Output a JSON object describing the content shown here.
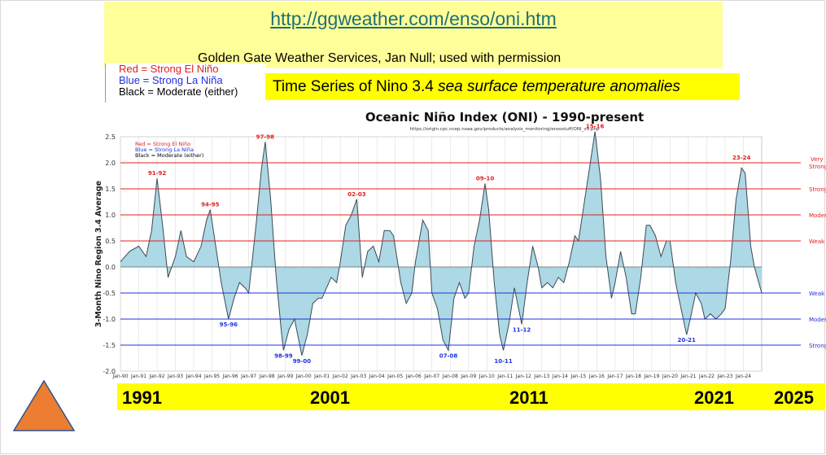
{
  "header": {
    "url_text": "http://ggweather.com/enso/oni.htm",
    "credit": "Golden Gate Weather Services, Jan Null; used with permission",
    "subtitle_plain": "Time Series of Nino 3.4 ",
    "subtitle_italic": "sea surface temperature anomalies"
  },
  "legend": {
    "red": "Red = Strong El Niño",
    "blue": "Blue = Strong La Niña",
    "black": "Black = Moderate (either)"
  },
  "year_labels": [
    "1991",
    "2001",
    "2011",
    "2021",
    "2025"
  ],
  "colors": {
    "banner": "#ffff99",
    "highlight": "#ffff00",
    "fill": "#add8e6",
    "el_nino": "#e02020",
    "la_nina": "#2030e0",
    "triangle": "#ed7d31"
  },
  "chart_data": {
    "type": "area",
    "title": "Oceanic Niño Index (ONI) - 1990-present",
    "source": "https://origin.cpc.ncep.noaa.gov/products/analysis_monitoring/ensostuff/ONI_v5.php",
    "ylabel": "3-Month Nino Region 3.4 Average",
    "xlabel": "",
    "ylim": [
      -2.0,
      2.5
    ],
    "xlim": [
      1990.0,
      2025.0
    ],
    "yticks": [
      "2.5",
      "2.0",
      "1.5",
      "1.0",
      "0.5",
      "0.0",
      "-0.5",
      "-1.0",
      "-1.5",
      "-2.0"
    ],
    "xticks": [
      "Jan-90",
      "Jan-91",
      "Jan-92",
      "Jan-93",
      "Jan-94",
      "Jan-95",
      "Jan-96",
      "Jan-97",
      "Jan-98",
      "Jan-99",
      "Jan-00",
      "Jan-01",
      "Jan-02",
      "Jan-03",
      "Jan-04",
      "Jan-05",
      "Jan-06",
      "Jan-07",
      "Jan-08",
      "Jan-09",
      "Jan-10",
      "Jan-11",
      "Jan-12",
      "Jan-13",
      "Jan-14",
      "Jan-15",
      "Jan-16",
      "Jan-17",
      "Jan-18",
      "Jan-19",
      "Jan-20",
      "Jan-21",
      "Jan-22",
      "Jan-23",
      "Jan-24"
    ],
    "chart_legend": {
      "red": "Red = Strong  El Niño",
      "blue": "Blue = Strong  La Niña",
      "black": "Black = Moderate  (either)"
    },
    "thresholds": [
      {
        "value": 2.0,
        "label": "Very Strong",
        "color": "red"
      },
      {
        "value": 1.5,
        "label": "Strong",
        "color": "red"
      },
      {
        "value": 1.0,
        "label": "Moderate",
        "color": "red"
      },
      {
        "value": 0.5,
        "label": "Weak",
        "color": "red"
      },
      {
        "value": -0.5,
        "label": "Weak",
        "color": "blue"
      },
      {
        "value": -1.0,
        "label": "Moderate",
        "color": "blue"
      },
      {
        "value": -1.5,
        "label": "Strong",
        "color": "blue"
      }
    ],
    "annotations": [
      {
        "text": "91-92",
        "x": 1992.0,
        "y": 1.7,
        "color": "red"
      },
      {
        "text": "94-95",
        "x": 1994.9,
        "y": 1.1,
        "color": "red"
      },
      {
        "text": "97-98",
        "x": 1997.9,
        "y": 2.4,
        "color": "red"
      },
      {
        "text": "02-03",
        "x": 2002.9,
        "y": 1.3,
        "color": "red"
      },
      {
        "text": "09-10",
        "x": 2009.9,
        "y": 1.6,
        "color": "red"
      },
      {
        "text": "15-16",
        "x": 2015.9,
        "y": 2.6,
        "color": "red"
      },
      {
        "text": "23-24",
        "x": 2023.9,
        "y": 2.0,
        "color": "red"
      },
      {
        "text": "95-96",
        "x": 1995.9,
        "y": -1.0,
        "color": "blue"
      },
      {
        "text": "98-99",
        "x": 1998.9,
        "y": -1.6,
        "color": "blue"
      },
      {
        "text": "99-00",
        "x": 1999.9,
        "y": -1.7,
        "color": "blue"
      },
      {
        "text": "07-08",
        "x": 2007.9,
        "y": -1.6,
        "color": "blue"
      },
      {
        "text": "10-11",
        "x": 2010.9,
        "y": -1.7,
        "color": "blue"
      },
      {
        "text": "11-12",
        "x": 2011.9,
        "y": -1.1,
        "color": "blue"
      },
      {
        "text": "20-21",
        "x": 2020.9,
        "y": -1.3,
        "color": "blue"
      }
    ],
    "x": [
      1990.0,
      1990.5,
      1991.0,
      1991.4,
      1991.7,
      1992.0,
      1992.3,
      1992.6,
      1993.0,
      1993.3,
      1993.6,
      1994.0,
      1994.4,
      1994.7,
      1994.9,
      1995.2,
      1995.5,
      1995.9,
      1996.2,
      1996.5,
      1996.8,
      1997.0,
      1997.4,
      1997.7,
      1997.9,
      1998.2,
      1998.5,
      1998.8,
      1998.9,
      1999.2,
      1999.5,
      1999.9,
      2000.2,
      2000.5,
      2000.8,
      2001.0,
      2001.5,
      2001.8,
      2002.0,
      2002.3,
      2002.6,
      2002.9,
      2003.2,
      2003.5,
      2003.8,
      2004.1,
      2004.4,
      2004.7,
      2004.9,
      2005.3,
      2005.6,
      2005.9,
      2006.1,
      2006.5,
      2006.8,
      2007.0,
      2007.3,
      2007.6,
      2007.9,
      2008.2,
      2008.5,
      2008.8,
      2009.0,
      2009.3,
      2009.6,
      2009.9,
      2010.1,
      2010.4,
      2010.7,
      2010.9,
      2011.2,
      2011.5,
      2011.9,
      2012.2,
      2012.5,
      2012.8,
      2013.0,
      2013.3,
      2013.6,
      2013.9,
      2014.2,
      2014.5,
      2014.8,
      2015.0,
      2015.3,
      2015.6,
      2015.9,
      2016.2,
      2016.5,
      2016.8,
      2017.0,
      2017.3,
      2017.6,
      2017.9,
      2018.1,
      2018.4,
      2018.7,
      2018.9,
      2019.2,
      2019.5,
      2019.8,
      2020.0,
      2020.3,
      2020.6,
      2020.9,
      2021.1,
      2021.4,
      2021.7,
      2021.9,
      2022.2,
      2022.5,
      2022.8,
      2023.0,
      2023.3,
      2023.6,
      2023.9,
      2024.1,
      2024.4,
      2024.6,
      2025.0
    ],
    "y": [
      0.1,
      0.3,
      0.4,
      0.2,
      0.7,
      1.7,
      0.8,
      -0.2,
      0.2,
      0.7,
      0.2,
      0.1,
      0.4,
      0.9,
      1.1,
      0.4,
      -0.3,
      -1.0,
      -0.6,
      -0.3,
      -0.4,
      -0.5,
      0.8,
      1.9,
      2.4,
      1.3,
      -0.2,
      -1.3,
      -1.6,
      -1.2,
      -1.0,
      -1.7,
      -1.3,
      -0.7,
      -0.6,
      -0.6,
      -0.2,
      -0.3,
      0.1,
      0.8,
      1.0,
      1.3,
      -0.2,
      0.3,
      0.4,
      0.1,
      0.7,
      0.7,
      0.6,
      -0.3,
      -0.7,
      -0.5,
      0.1,
      0.9,
      0.7,
      -0.5,
      -0.8,
      -1.4,
      -1.6,
      -0.6,
      -0.3,
      -0.6,
      -0.5,
      0.4,
      0.9,
      1.6,
      1.1,
      -0.3,
      -1.3,
      -1.6,
      -1.1,
      -0.4,
      -1.1,
      -0.3,
      0.4,
      0.0,
      -0.4,
      -0.3,
      -0.4,
      -0.2,
      -0.3,
      0.1,
      0.6,
      0.5,
      1.2,
      1.9,
      2.6,
      1.7,
      0.2,
      -0.6,
      -0.3,
      0.3,
      -0.2,
      -0.9,
      -0.9,
      -0.2,
      0.8,
      0.8,
      0.6,
      0.2,
      0.5,
      0.5,
      -0.3,
      -0.8,
      -1.3,
      -1.0,
      -0.5,
      -0.7,
      -1.0,
      -0.9,
      -1.0,
      -0.9,
      -0.8,
      0.1,
      1.3,
      1.9,
      1.8,
      0.4,
      0.0,
      -0.5
    ]
  }
}
